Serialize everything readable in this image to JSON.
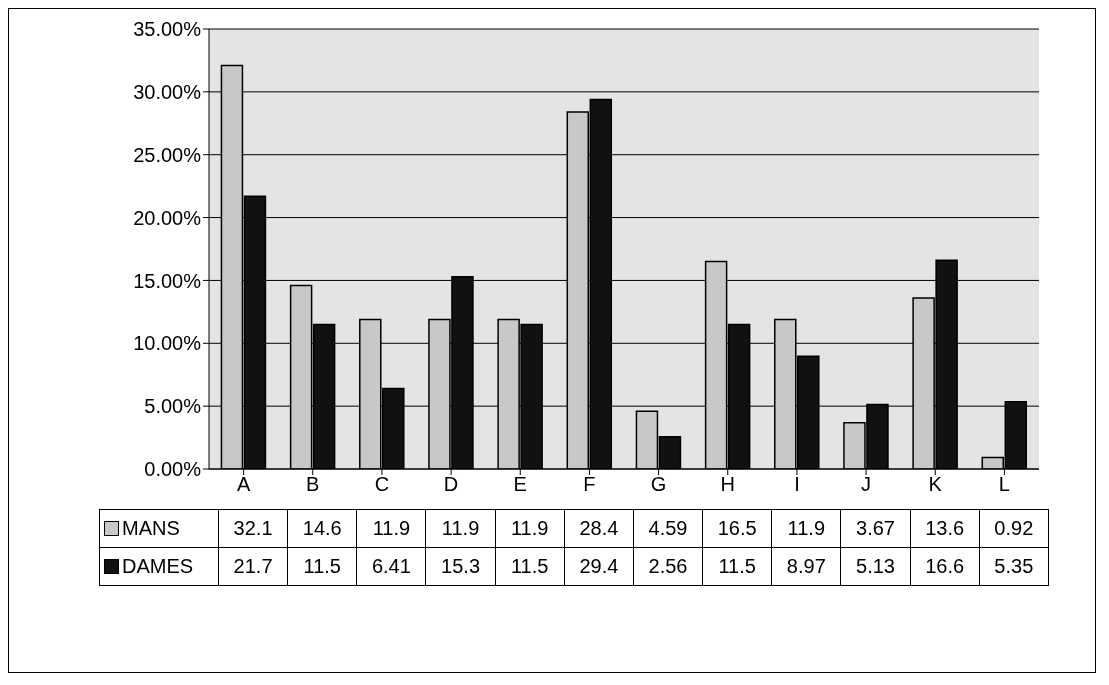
{
  "chart_data": {
    "type": "bar",
    "categories": [
      "A",
      "B",
      "C",
      "D",
      "E",
      "F",
      "G",
      "H",
      "I",
      "J",
      "K",
      "L"
    ],
    "series": [
      {
        "name": "MANS",
        "color": "#c8c8c8",
        "values": [
          32.1,
          14.6,
          11.9,
          11.9,
          11.9,
          28.4,
          4.59,
          16.5,
          11.9,
          3.67,
          13.6,
          0.92
        ]
      },
      {
        "name": "DAMES",
        "color": "#111111",
        "values": [
          21.7,
          11.5,
          6.41,
          15.3,
          11.5,
          29.4,
          2.56,
          11.5,
          8.97,
          5.13,
          16.6,
          5.35
        ]
      }
    ],
    "ylim": [
      0,
      35
    ],
    "yticks": [
      {
        "value": 0,
        "label": "0.00%"
      },
      {
        "value": 5,
        "label": "5.00%"
      },
      {
        "value": 10,
        "label": "10.00%"
      },
      {
        "value": 15,
        "label": "15.00%"
      },
      {
        "value": 20,
        "label": "20.00%"
      },
      {
        "value": 25,
        "label": "25.00%"
      },
      {
        "value": 30,
        "label": "30.00%"
      },
      {
        "value": 35,
        "label": "35.00%"
      }
    ],
    "grid": "y",
    "legend": "bottom",
    "data_labels": true
  }
}
